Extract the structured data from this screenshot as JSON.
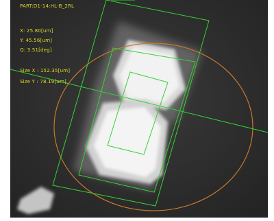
{
  "inspection": {
    "part_label": "PART:D1-14:HL-B_2RL",
    "x_value": "X: 25.80[um]",
    "y_value": "Y: 45.56[um]",
    "angle_value": "Q: 3.51[deg]",
    "size_x": "Size X : 152.35[um]",
    "size_y": "Size Y : 78.19[um]"
  },
  "colors": {
    "overlay_text": "#d9d62a",
    "detection_box": "#35d232",
    "tolerance_circle": "#c8782a",
    "background": "#2c2c2c"
  }
}
